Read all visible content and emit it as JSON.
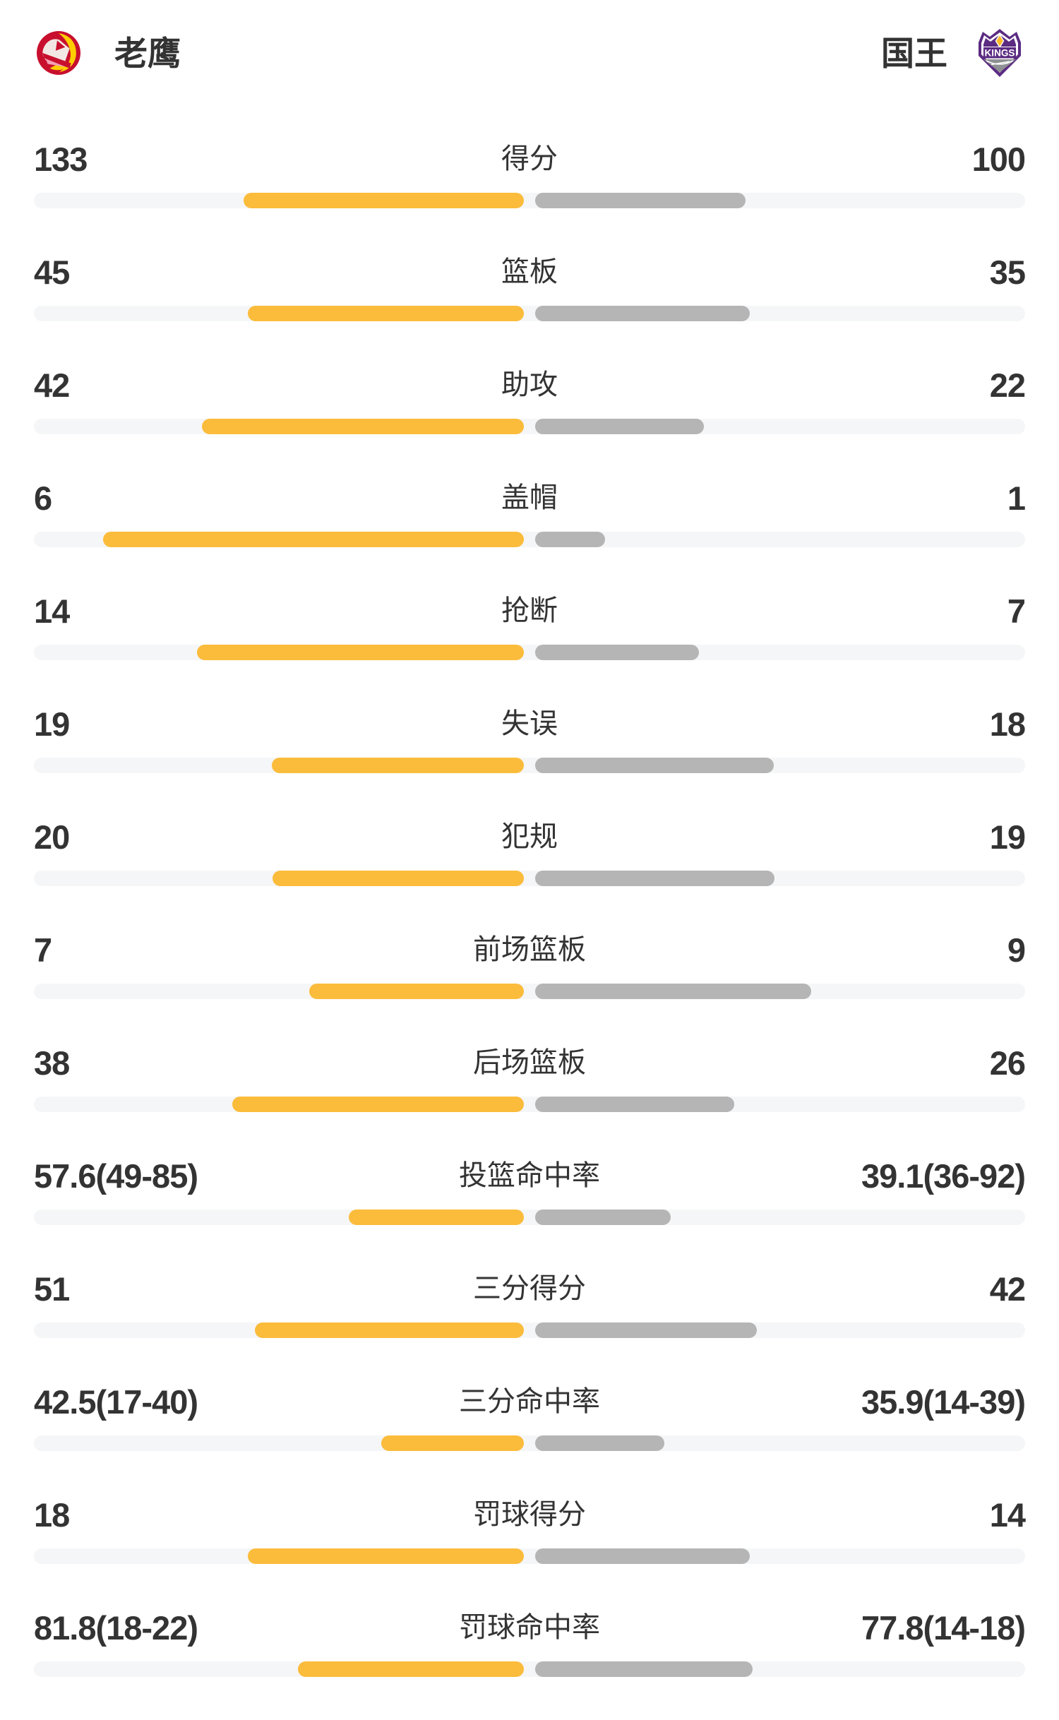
{
  "header": {
    "home": {
      "name": "老鹰",
      "logo_icon": "hawks-logo"
    },
    "away": {
      "name": "国王",
      "logo_icon": "kings-logo",
      "logo_text": "KINGS"
    }
  },
  "colors": {
    "text": "#333333",
    "home_bar": "#FBBC3C",
    "away_bar": "#B5B5B5",
    "track": "#F5F6F7",
    "hawks_red": "#C8102E",
    "hawks_yellow": "#FFCD00",
    "kings_purple": "#5B2B82",
    "kings_gray": "#8E9093",
    "kings_gold": "#FDB927"
  },
  "chart_data": {
    "type": "bar",
    "orientation": "horizontal-paired-from-center",
    "legend": [
      "老鹰",
      "国王"
    ],
    "legend_position": "top",
    "grid": false,
    "rows": [
      {
        "label": "得分",
        "home_display": "133",
        "away_display": "100",
        "home": 133,
        "away": 100,
        "kind": "count"
      },
      {
        "label": "篮板",
        "home_display": "45",
        "away_display": "35",
        "home": 45,
        "away": 35,
        "kind": "count"
      },
      {
        "label": "助攻",
        "home_display": "42",
        "away_display": "22",
        "home": 42,
        "away": 22,
        "kind": "count"
      },
      {
        "label": "盖帽",
        "home_display": "6",
        "away_display": "1",
        "home": 6,
        "away": 1,
        "kind": "count"
      },
      {
        "label": "抢断",
        "home_display": "14",
        "away_display": "7",
        "home": 14,
        "away": 7,
        "kind": "count"
      },
      {
        "label": "失误",
        "home_display": "19",
        "away_display": "18",
        "home": 19,
        "away": 18,
        "kind": "count"
      },
      {
        "label": "犯规",
        "home_display": "20",
        "away_display": "19",
        "home": 20,
        "away": 19,
        "kind": "count"
      },
      {
        "label": "前场篮板",
        "home_display": "7",
        "away_display": "9",
        "home": 7,
        "away": 9,
        "kind": "count"
      },
      {
        "label": "后场篮板",
        "home_display": "38",
        "away_display": "26",
        "home": 38,
        "away": 26,
        "kind": "count"
      },
      {
        "label": "投篮命中率",
        "home_display": "57.6(49-85)",
        "away_display": "39.1(36-92)",
        "home": 57.6,
        "away": 39.1,
        "home_made_att": "49-85",
        "away_made_att": "36-92",
        "kind": "percent"
      },
      {
        "label": "三分得分",
        "home_display": "51",
        "away_display": "42",
        "home": 51,
        "away": 42,
        "kind": "count"
      },
      {
        "label": "三分命中率",
        "home_display": "42.5(17-40)",
        "away_display": "35.9(14-39)",
        "home": 42.5,
        "away": 35.9,
        "home_made_att": "17-40",
        "away_made_att": "14-39",
        "kind": "percent"
      },
      {
        "label": "罚球得分",
        "home_display": "18",
        "away_display": "14",
        "home": 18,
        "away": 14,
        "kind": "count"
      },
      {
        "label": "罚球命中率",
        "home_display": "81.8(18-22)",
        "away_display": "77.8(14-18)",
        "home": 81.8,
        "away": 77.8,
        "home_made_att": "18-22",
        "away_made_att": "14-18",
        "kind": "percent"
      }
    ]
  }
}
